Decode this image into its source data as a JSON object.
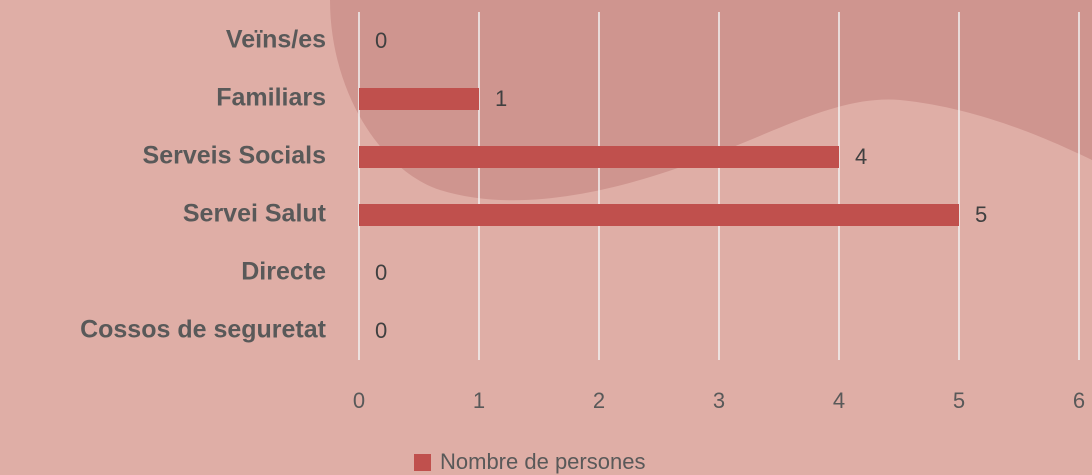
{
  "chart_data": {
    "type": "bar",
    "orientation": "horizontal",
    "categories": [
      "Veïns/es",
      "Familiars",
      "Serveis Socials",
      "Servei Salut",
      "Directe",
      "Cossos de seguretat"
    ],
    "series": [
      {
        "name": "Nombre de persones",
        "color": "#c0504d",
        "values": [
          0,
          1,
          4,
          5,
          0,
          0
        ]
      }
    ],
    "xlim": [
      0,
      6
    ],
    "xticks": [
      0,
      1,
      2,
      3,
      4,
      5,
      6
    ],
    "grid": true,
    "legend": "bottom"
  }
}
